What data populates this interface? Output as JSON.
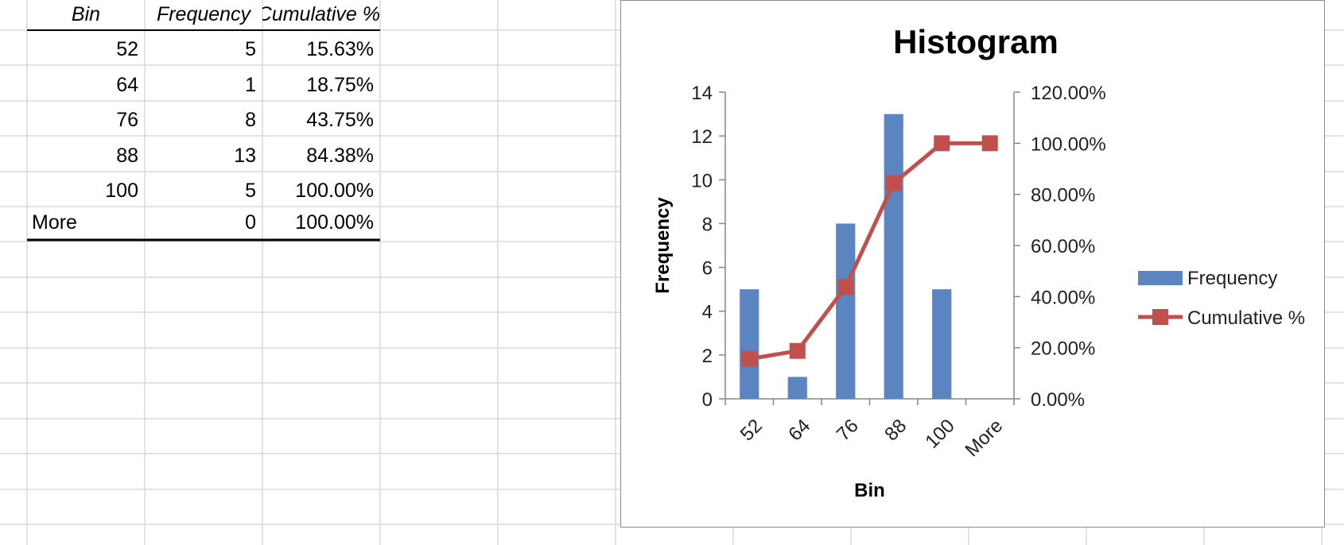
{
  "table": {
    "headers": [
      "Bin",
      "Frequency",
      "Cumulative %"
    ],
    "rows": [
      {
        "bin": "52",
        "frequency": "5",
        "cumulative": "15.63%"
      },
      {
        "bin": "64",
        "frequency": "1",
        "cumulative": "18.75%"
      },
      {
        "bin": "76",
        "frequency": "8",
        "cumulative": "43.75%"
      },
      {
        "bin": "88",
        "frequency": "13",
        "cumulative": "84.38%"
      },
      {
        "bin": "100",
        "frequency": "5",
        "cumulative": "100.00%"
      },
      {
        "bin": "More",
        "frequency": "0",
        "cumulative": "100.00%"
      }
    ]
  },
  "chart_data": {
    "type": "bar",
    "title": "Histogram",
    "xlabel": "Bin",
    "ylabel": "Frequency",
    "categories": [
      "52",
      "64",
      "76",
      "88",
      "100",
      "More"
    ],
    "series": [
      {
        "name": "Frequency",
        "type": "bar",
        "axis": "left",
        "color": "#5B85C0",
        "values": [
          5,
          1,
          8,
          13,
          5,
          0
        ]
      },
      {
        "name": "Cumulative %",
        "type": "line",
        "axis": "right",
        "color": "#C0504D",
        "values": [
          15.63,
          18.75,
          43.75,
          84.38,
          100.0,
          100.0
        ]
      }
    ],
    "ylim": [
      0,
      14
    ],
    "yticks": [
      0,
      2,
      4,
      6,
      8,
      10,
      12,
      14
    ],
    "y2lim": [
      0,
      120
    ],
    "y2ticks": [
      "0.00%",
      "20.00%",
      "40.00%",
      "60.00%",
      "80.00%",
      "100.00%",
      "120.00%"
    ],
    "grid": false,
    "legend": "right"
  }
}
